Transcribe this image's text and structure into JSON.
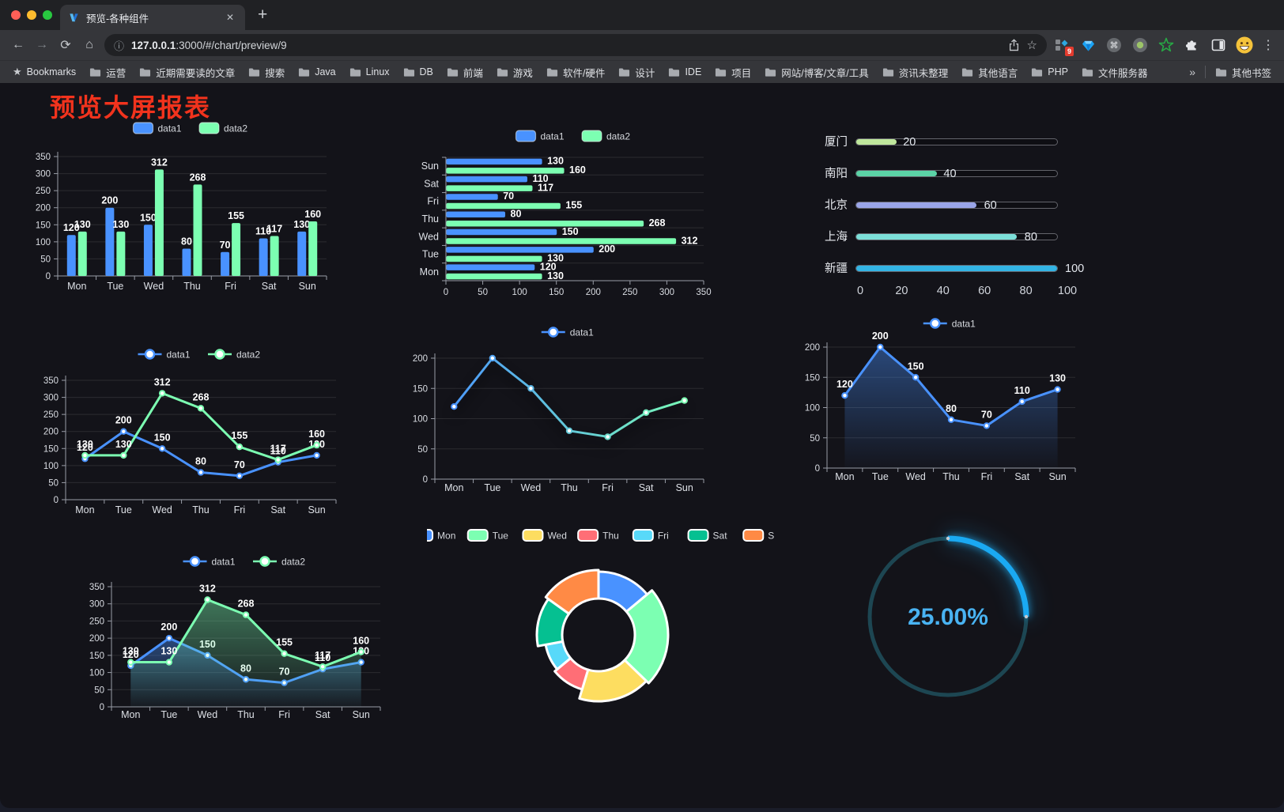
{
  "browser": {
    "traffic_lights": [
      "#ff5f57",
      "#febc2e",
      "#28c840"
    ],
    "tab_title": "预览-各种组件",
    "url": {
      "host": "127.0.0.1",
      "rest": ":3000/#/chart/preview/9"
    },
    "ext_badge": "9",
    "bookmarks_bar": {
      "star_label": "Bookmarks",
      "folders": [
        "运营",
        "近期需要读的文章",
        "搜索",
        "Java",
        "Linux",
        "DB",
        "前端",
        "游戏",
        "软件/硬件",
        "设计",
        "IDE",
        "项目",
        "网站/博客/文章/工具",
        "资讯未整理",
        "其他语言",
        "PHP",
        "文件服务器"
      ],
      "other_bookmarks": "其他书签"
    },
    "icons": {
      "back": "←",
      "forward": "→",
      "reload": "⟳",
      "home": "⌂",
      "info": "ⓘ",
      "star": "☆",
      "bookmark_star": "★",
      "menu": "⋮",
      "overflow": "»",
      "close": "✕",
      "new_tab": "+"
    }
  },
  "page": {
    "title": "预览大屏报表",
    "title_color": "#f2331d"
  },
  "palette": {
    "data1": "#4992ff",
    "data2": "#7cffb2",
    "grid": "rgba(255,255,255,0.10)",
    "axis": "#989ca6",
    "label": "#ffffff"
  },
  "chart_data": [
    {
      "id": "bar-vertical",
      "type": "bar",
      "categories": [
        "Mon",
        "Tue",
        "Wed",
        "Thu",
        "Fri",
        "Sat",
        "Sun"
      ],
      "series": [
        {
          "name": "data1",
          "color": "#4992ff",
          "values": [
            120,
            200,
            150,
            80,
            70,
            110,
            130
          ]
        },
        {
          "name": "data2",
          "color": "#7cffb2",
          "values": [
            130,
            130,
            312,
            268,
            155,
            117,
            160
          ]
        }
      ],
      "ylim": [
        0,
        350
      ],
      "yticks": [
        0,
        50,
        100,
        150,
        200,
        250,
        300,
        350
      ],
      "grid": true,
      "legend_position": "top",
      "labels": true
    },
    {
      "id": "bar-horizontal",
      "type": "bar-horizontal",
      "categories": [
        "Mon",
        "Tue",
        "Wed",
        "Thu",
        "Fri",
        "Sat",
        "Sun"
      ],
      "category_order_top_to_bottom": [
        "Sun",
        "Sat",
        "Fri",
        "Thu",
        "Wed",
        "Tue",
        "Mon"
      ],
      "series": [
        {
          "name": "data1",
          "color": "#4992ff",
          "values": [
            120,
            200,
            150,
            80,
            70,
            110,
            130
          ]
        },
        {
          "name": "data2",
          "color": "#7cffb2",
          "values": [
            130,
            130,
            312,
            268,
            155,
            117,
            160
          ]
        }
      ],
      "xlim": [
        0,
        350
      ],
      "xticks": [
        0,
        50,
        100,
        150,
        200,
        250,
        300,
        350
      ],
      "grid": true,
      "legend_position": "top",
      "labels": true
    },
    {
      "id": "progress-list",
      "type": "progress",
      "max": 100,
      "xticks": [
        0,
        20,
        40,
        60,
        80,
        100
      ],
      "items": [
        {
          "label": "厦门",
          "value": 20,
          "color": "#bfe79c"
        },
        {
          "label": "南阳",
          "value": 40,
          "color": "#5bd3a6"
        },
        {
          "label": "北京",
          "value": 60,
          "color": "#9aa5e8"
        },
        {
          "label": "上海",
          "value": 80,
          "color": "#7cdfd8"
        },
        {
          "label": "新疆",
          "value": 100,
          "color": "#33b4e4"
        }
      ]
    },
    {
      "id": "line-dual",
      "type": "line",
      "categories": [
        "Mon",
        "Tue",
        "Wed",
        "Thu",
        "Fri",
        "Sat",
        "Sun"
      ],
      "series": [
        {
          "name": "data1",
          "color": "#4992ff",
          "values": [
            120,
            200,
            150,
            80,
            70,
            110,
            130
          ]
        },
        {
          "name": "data2",
          "color": "#7cffb2",
          "values": [
            130,
            130,
            312,
            268,
            155,
            117,
            160
          ]
        }
      ],
      "ylim": [
        0,
        350
      ],
      "yticks": [
        0,
        50,
        100,
        150,
        200,
        250,
        300,
        350
      ],
      "grid": true,
      "legend_position": "top",
      "labels": true
    },
    {
      "id": "line-gradient",
      "type": "line",
      "categories": [
        "Mon",
        "Tue",
        "Wed",
        "Thu",
        "Fri",
        "Sat",
        "Sun"
      ],
      "series": [
        {
          "name": "data1",
          "gradient": [
            "#4992ff",
            "#7cffb2"
          ],
          "values": [
            120,
            200,
            150,
            80,
            70,
            110,
            130
          ]
        }
      ],
      "ylim": [
        0,
        200
      ],
      "yticks": [
        0,
        50,
        100,
        150,
        200
      ],
      "grid": true,
      "legend_position": "top",
      "labels": false
    },
    {
      "id": "area-single",
      "type": "area",
      "categories": [
        "Mon",
        "Tue",
        "Wed",
        "Thu",
        "Fri",
        "Sat",
        "Sun"
      ],
      "series": [
        {
          "name": "data1",
          "color": "#4992ff",
          "values": [
            120,
            200,
            150,
            80,
            70,
            110,
            130
          ]
        }
      ],
      "ylim": [
        0,
        200
      ],
      "yticks": [
        0,
        50,
        100,
        150,
        200
      ],
      "grid": true,
      "legend_position": "top",
      "labels": true
    },
    {
      "id": "area-dual",
      "type": "area",
      "categories": [
        "Mon",
        "Tue",
        "Wed",
        "Thu",
        "Fri",
        "Sat",
        "Sun"
      ],
      "series": [
        {
          "name": "data1",
          "color": "#4992ff",
          "values": [
            120,
            200,
            150,
            80,
            70,
            110,
            130
          ]
        },
        {
          "name": "data2",
          "color": "#7cffb2",
          "values": [
            130,
            130,
            312,
            268,
            155,
            117,
            160
          ]
        }
      ],
      "ylim": [
        0,
        350
      ],
      "yticks": [
        0,
        50,
        100,
        150,
        200,
        250,
        300,
        350
      ],
      "grid": true,
      "legend_position": "top",
      "labels": true
    },
    {
      "id": "pie-rose",
      "type": "pie",
      "rose": true,
      "legend_position": "top",
      "items": [
        {
          "label": "Mon",
          "value": 120,
          "color": "#4992ff"
        },
        {
          "label": "Tue",
          "value": 200,
          "color": "#7cffb2"
        },
        {
          "label": "Wed",
          "value": 150,
          "color": "#fddd60"
        },
        {
          "label": "Thu",
          "value": 80,
          "color": "#ff6e76"
        },
        {
          "label": "Fri",
          "value": 70,
          "color": "#58d9f9"
        },
        {
          "label": "Sat",
          "value": 110,
          "color": "#05c091"
        },
        {
          "label": "Sun",
          "value": 130,
          "color": "#ff8a45"
        }
      ]
    },
    {
      "id": "gauge",
      "type": "gauge",
      "value": 25,
      "display": "25.00%",
      "color": "#1aa9f2",
      "track_color": "#1d4652",
      "text_color": "#49b3f2"
    }
  ]
}
